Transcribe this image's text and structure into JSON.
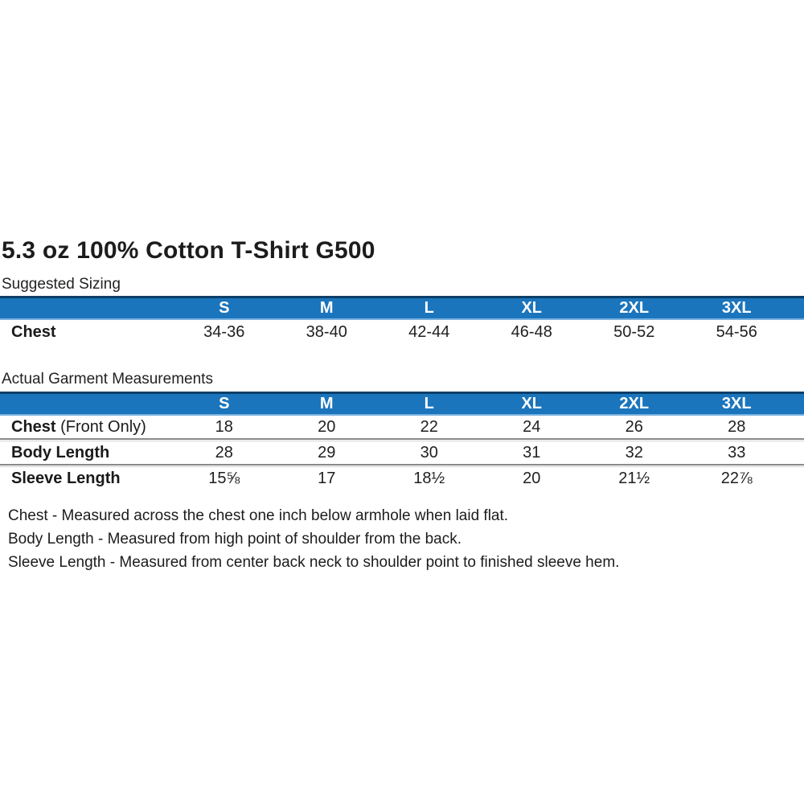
{
  "title": "5.3 oz 100% Cotton T-Shirt G500",
  "colors": {
    "header_bar": "#1B75BC",
    "header_bar_top_border": "#0D3F68",
    "header_bar_bottom_border": "#79B0DD",
    "header_text": "#FFFFFF",
    "row_divider": "#8A8A8A",
    "body_text": "#1A1A1A"
  },
  "suggested_sizing": {
    "heading": "Suggested Sizing",
    "columns": [
      "S",
      "M",
      "L",
      "XL",
      "2XL",
      "3XL"
    ],
    "rows": [
      {
        "label": "Chest",
        "suffix": "",
        "values": [
          "34-36",
          "38-40",
          "42-44",
          "46-48",
          "50-52",
          "54-56"
        ]
      }
    ]
  },
  "actual_garment": {
    "heading": "Actual Garment Measurements",
    "columns": [
      "S",
      "M",
      "L",
      "XL",
      "2XL",
      "3XL"
    ],
    "rows": [
      {
        "label": "Chest",
        "suffix": " (Front Only)",
        "values": [
          "18",
          "20",
          "22",
          "24",
          "26",
          "28"
        ]
      },
      {
        "label": "Body Length",
        "suffix": "",
        "values": [
          "28",
          "29",
          "30",
          "31",
          "32",
          "33"
        ]
      },
      {
        "label": "Sleeve Length",
        "suffix": "",
        "values": [
          "15⅝",
          "17",
          "18½",
          "20",
          "21½",
          "22⅞"
        ]
      }
    ]
  },
  "footnotes": [
    "Chest - Measured across the chest one inch below armhole when laid flat.",
    "Body Length - Measured from high point of shoulder from the back.",
    "Sleeve Length - Measured from center back neck to shoulder point to finished sleeve hem."
  ]
}
